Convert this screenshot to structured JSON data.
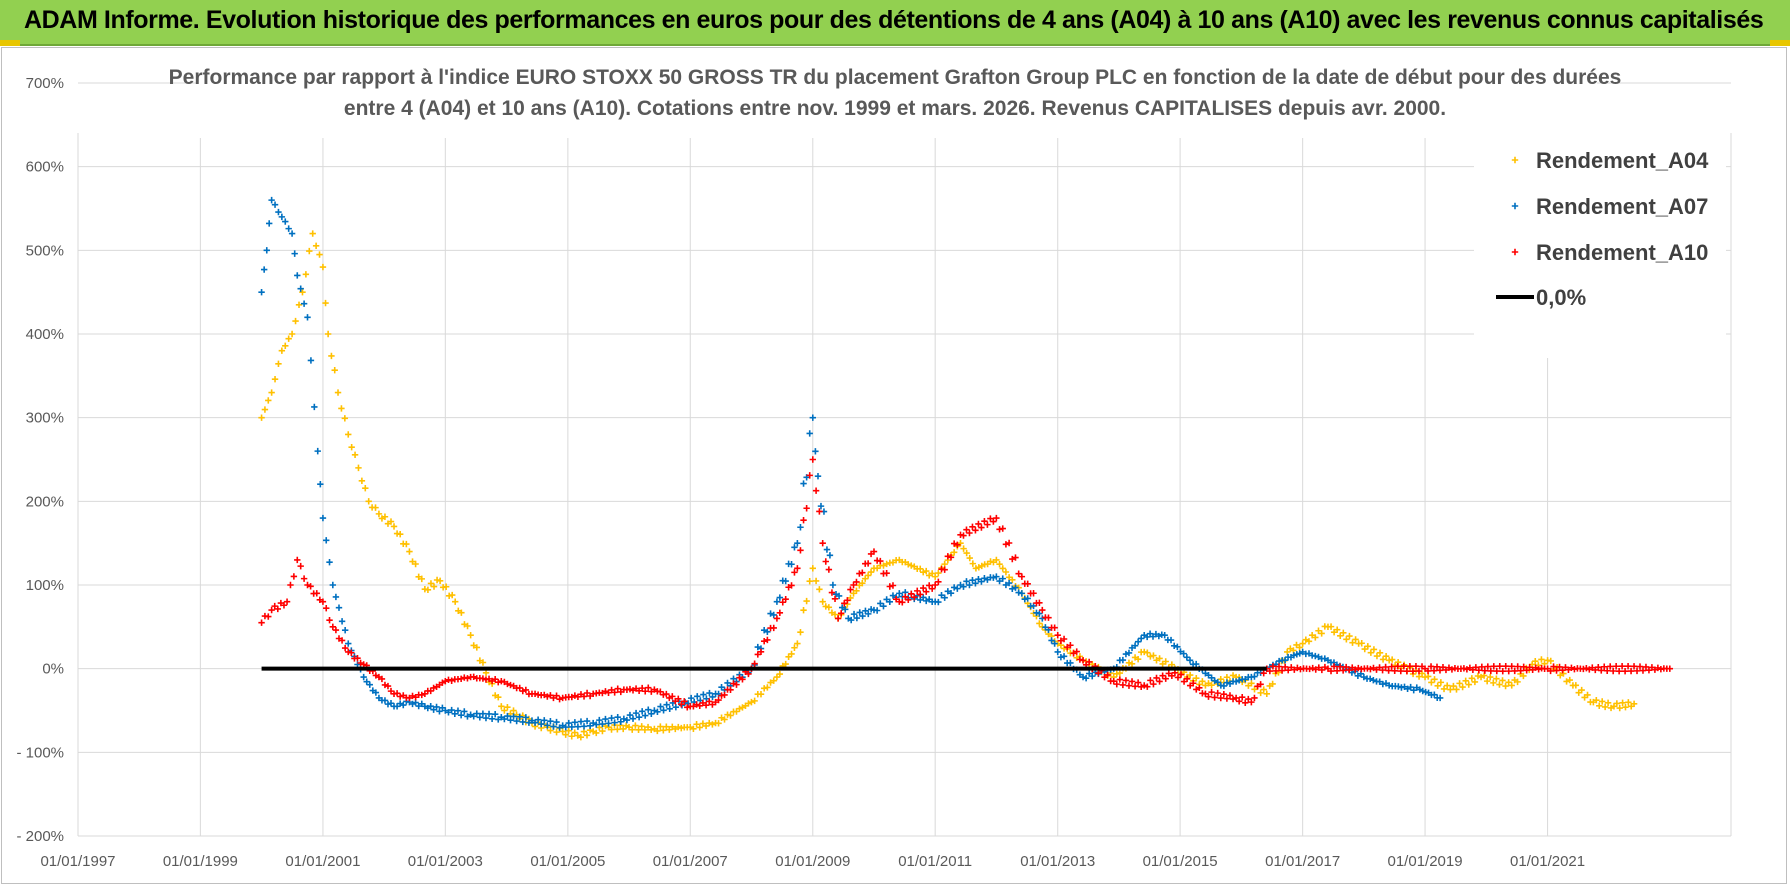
{
  "header": {
    "title": "ADAM Informe. Evolution historique des performances en euros pour des détentions de 4 ans (A04) à 10 ans (A10) avec les revenus connus capitalisés"
  },
  "chart_data": {
    "type": "scatter",
    "title_lines": [
      "Performance par rapport à l'indice EURO STOXX 50 GROSS TR  du placement Grafton Group PLC en fonction de la date de début pour des durées",
      "entre 4 (A04) et 10 ans (A10). Cotations entre nov. 1999 et mars. 2026. Revenus CAPITALISES depuis avr. 2000."
    ],
    "xlabel": "",
    "ylabel": "",
    "x_range": [
      "1997-01-01",
      "2023-12-31"
    ],
    "x_ticks": [
      "01/01/1997",
      "01/01/1999",
      "01/01/2001",
      "01/01/2003",
      "01/01/2005",
      "01/01/2007",
      "01/01/2009",
      "01/01/2011",
      "01/01/2013",
      "01/01/2015",
      "01/01/2017",
      "01/01/2019",
      "01/01/2021"
    ],
    "x_tick_dates": [
      "1997-01-01",
      "1999-01-01",
      "2001-01-01",
      "2003-01-01",
      "2005-01-01",
      "2007-01-01",
      "2009-01-01",
      "2011-01-01",
      "2013-01-01",
      "2015-01-01",
      "2017-01-01",
      "2019-01-01",
      "2021-01-01"
    ],
    "y_range": [
      -200,
      700
    ],
    "y_ticks": [
      -200,
      -100,
      0,
      100,
      200,
      300,
      400,
      500,
      600,
      700
    ],
    "y_tick_labels": [
      "- 200%",
      "- 100%",
      "0%",
      "100%",
      "200%",
      "300%",
      "400%",
      "500%",
      "600%",
      "700%"
    ],
    "grid": true,
    "legend_position": "top-right",
    "series": [
      {
        "name": "Rendement_A04",
        "color": "#ffc000",
        "marker": "plus",
        "points": [
          [
            "2000-01-01",
            300
          ],
          [
            "2000-03-01",
            330
          ],
          [
            "2000-05-01",
            380
          ],
          [
            "2000-07-01",
            400
          ],
          [
            "2000-09-01",
            450
          ],
          [
            "2000-11-01",
            520
          ],
          [
            "2001-01-01",
            480
          ],
          [
            "2001-02-01",
            400
          ],
          [
            "2001-04-01",
            330
          ],
          [
            "2001-06-01",
            280
          ],
          [
            "2001-08-01",
            240
          ],
          [
            "2001-10-01",
            200
          ],
          [
            "2001-12-01",
            185
          ],
          [
            "2002-03-01",
            170
          ],
          [
            "2002-06-01",
            140
          ],
          [
            "2002-09-01",
            95
          ],
          [
            "2002-12-01",
            105
          ],
          [
            "2003-03-01",
            80
          ],
          [
            "2003-06-01",
            40
          ],
          [
            "2003-09-01",
            -5
          ],
          [
            "2003-12-01",
            -45
          ],
          [
            "2004-03-01",
            -55
          ],
          [
            "2004-06-01",
            -65
          ],
          [
            "2004-09-01",
            -70
          ],
          [
            "2004-12-01",
            -75
          ],
          [
            "2005-03-01",
            -80
          ],
          [
            "2005-06-01",
            -75
          ],
          [
            "2005-09-01",
            -70
          ],
          [
            "2006-01-01",
            -70
          ],
          [
            "2006-06-01",
            -72
          ],
          [
            "2007-01-01",
            -70
          ],
          [
            "2007-06-01",
            -65
          ],
          [
            "2008-01-01",
            -40
          ],
          [
            "2008-06-01",
            -10
          ],
          [
            "2008-10-01",
            30
          ],
          [
            "2009-01-01",
            120
          ],
          [
            "2009-03-01",
            80
          ],
          [
            "2009-06-01",
            60
          ],
          [
            "2009-09-01",
            90
          ],
          [
            "2010-01-01",
            120
          ],
          [
            "2010-06-01",
            130
          ],
          [
            "2011-01-01",
            110
          ],
          [
            "2011-06-01",
            150
          ],
          [
            "2011-09-01",
            120
          ],
          [
            "2012-01-01",
            130
          ],
          [
            "2012-06-01",
            90
          ],
          [
            "2012-10-01",
            50
          ],
          [
            "2013-01-01",
            30
          ],
          [
            "2013-06-01",
            10
          ],
          [
            "2013-12-01",
            -10
          ],
          [
            "2014-06-01",
            20
          ],
          [
            "2014-12-01",
            0
          ],
          [
            "2015-06-01",
            -20
          ],
          [
            "2015-12-01",
            -10
          ],
          [
            "2016-06-01",
            -30
          ],
          [
            "2016-10-01",
            20
          ],
          [
            "2017-01-01",
            30
          ],
          [
            "2017-06-01",
            50
          ],
          [
            "2017-12-01",
            30
          ],
          [
            "2018-06-01",
            10
          ],
          [
            "2019-01-01",
            -10
          ],
          [
            "2019-06-01",
            -25
          ],
          [
            "2019-12-01",
            -10
          ],
          [
            "2020-06-01",
            -20
          ],
          [
            "2020-10-01",
            5
          ],
          [
            "2021-01-01",
            10
          ],
          [
            "2021-06-01",
            -20
          ],
          [
            "2021-10-01",
            -40
          ],
          [
            "2022-02-01",
            -45
          ],
          [
            "2022-06-01",
            -42
          ]
        ]
      },
      {
        "name": "Rendement_A07",
        "color": "#0070c0",
        "marker": "plus",
        "points": [
          [
            "2000-01-01",
            450
          ],
          [
            "2000-02-01",
            500
          ],
          [
            "2000-03-01",
            560
          ],
          [
            "2000-05-01",
            540
          ],
          [
            "2000-07-01",
            520
          ],
          [
            "2000-08-01",
            470
          ],
          [
            "2000-10-01",
            420
          ],
          [
            "2000-12-01",
            260
          ],
          [
            "2001-01-01",
            180
          ],
          [
            "2001-03-01",
            100
          ],
          [
            "2001-06-01",
            30
          ],
          [
            "2001-09-01",
            -10
          ],
          [
            "2001-12-01",
            -35
          ],
          [
            "2002-03-01",
            -45
          ],
          [
            "2002-06-01",
            -40
          ],
          [
            "2002-09-01",
            -45
          ],
          [
            "2003-01-01",
            -50
          ],
          [
            "2003-06-01",
            -55
          ],
          [
            "2003-12-01",
            -58
          ],
          [
            "2004-06-01",
            -62
          ],
          [
            "2004-12-01",
            -68
          ],
          [
            "2005-06-01",
            -65
          ],
          [
            "2005-12-01",
            -60
          ],
          [
            "2006-06-01",
            -50
          ],
          [
            "2006-12-01",
            -40
          ],
          [
            "2007-06-01",
            -30
          ],
          [
            "2008-01-01",
            0
          ],
          [
            "2008-06-01",
            80
          ],
          [
            "2008-10-01",
            150
          ],
          [
            "2009-01-01",
            300
          ],
          [
            "2009-02-01",
            230
          ],
          [
            "2009-05-01",
            100
          ],
          [
            "2009-08-01",
            60
          ],
          [
            "2010-01-01",
            70
          ],
          [
            "2010-06-01",
            90
          ],
          [
            "2011-01-01",
            80
          ],
          [
            "2011-06-01",
            100
          ],
          [
            "2012-01-01",
            110
          ],
          [
            "2012-06-01",
            90
          ],
          [
            "2012-10-01",
            60
          ],
          [
            "2013-01-01",
            20
          ],
          [
            "2013-06-01",
            -10
          ],
          [
            "2013-12-01",
            0
          ],
          [
            "2014-06-01",
            40
          ],
          [
            "2014-10-01",
            40
          ],
          [
            "2015-03-01",
            10
          ],
          [
            "2015-09-01",
            -20
          ],
          [
            "2016-03-01",
            -10
          ],
          [
            "2016-09-01",
            10
          ],
          [
            "2017-01-01",
            20
          ],
          [
            "2017-06-01",
            10
          ],
          [
            "2018-01-01",
            -10
          ],
          [
            "2018-06-01",
            -20
          ],
          [
            "2018-12-01",
            -25
          ],
          [
            "2019-04-01",
            -35
          ]
        ]
      },
      {
        "name": "Rendement_A10",
        "color": "#ff0000",
        "marker": "plus",
        "points": [
          [
            "2000-01-01",
            55
          ],
          [
            "2000-03-01",
            70
          ],
          [
            "2000-06-01",
            80
          ],
          [
            "2000-08-01",
            130
          ],
          [
            "2000-10-01",
            100
          ],
          [
            "2001-01-01",
            80
          ],
          [
            "2001-03-01",
            50
          ],
          [
            "2001-06-01",
            20
          ],
          [
            "2001-09-01",
            5
          ],
          [
            "2001-12-01",
            -10
          ],
          [
            "2002-03-01",
            -30
          ],
          [
            "2002-06-01",
            -35
          ],
          [
            "2002-09-01",
            -30
          ],
          [
            "2003-01-01",
            -15
          ],
          [
            "2003-06-01",
            -10
          ],
          [
            "2003-12-01",
            -15
          ],
          [
            "2004-06-01",
            -30
          ],
          [
            "2004-12-01",
            -35
          ],
          [
            "2005-06-01",
            -30
          ],
          [
            "2005-12-01",
            -25
          ],
          [
            "2006-06-01",
            -25
          ],
          [
            "2007-01-01",
            -45
          ],
          [
            "2007-06-01",
            -40
          ],
          [
            "2008-01-01",
            0
          ],
          [
            "2008-06-01",
            60
          ],
          [
            "2008-10-01",
            120
          ],
          [
            "2009-01-01",
            250
          ],
          [
            "2009-03-01",
            150
          ],
          [
            "2009-06-01",
            60
          ],
          [
            "2009-09-01",
            100
          ],
          [
            "2010-01-01",
            140
          ],
          [
            "2010-06-01",
            80
          ],
          [
            "2011-01-01",
            100
          ],
          [
            "2011-06-01",
            160
          ],
          [
            "2012-01-01",
            180
          ],
          [
            "2012-06-01",
            110
          ],
          [
            "2012-10-01",
            70
          ],
          [
            "2013-01-01",
            40
          ],
          [
            "2013-06-01",
            10
          ],
          [
            "2013-12-01",
            -15
          ],
          [
            "2014-06-01",
            -20
          ],
          [
            "2014-12-01",
            -5
          ],
          [
            "2015-06-01",
            -30
          ],
          [
            "2015-12-01",
            -35
          ],
          [
            "2016-03-01",
            -40
          ],
          [
            "2016-06-01",
            0
          ],
          [
            "2017-06-01",
            0
          ],
          [
            "2019-01-01",
            0
          ],
          [
            "2021-01-01",
            0
          ],
          [
            "2022-12-31",
            0
          ]
        ]
      },
      {
        "name": "0,0%",
        "color": "#000000",
        "marker": "line",
        "points": [
          [
            "2000-01-01",
            0
          ],
          [
            "2016-06-01",
            0
          ]
        ]
      }
    ]
  }
}
